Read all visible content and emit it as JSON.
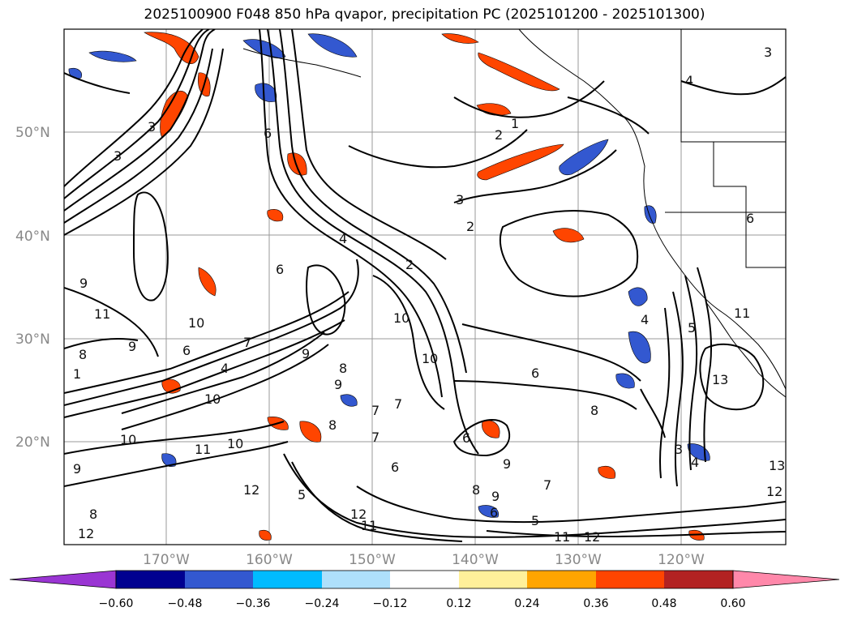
{
  "title": "2025100900 F048 850 hPa qvapor, precipitation PC (2025101200 - 2025101300)",
  "lat_labels": [
    "20°N",
    "30°N",
    "40°N",
    "50°N"
  ],
  "lon_labels": [
    "170°W",
    "160°W",
    "150°W",
    "140°W",
    "130°W",
    "120°W"
  ],
  "colorbar": {
    "ticks": [
      "−0.60",
      "−0.48",
      "−0.36",
      "−0.24",
      "−0.12",
      "0.12",
      "0.24",
      "0.36",
      "0.48",
      "0.60"
    ],
    "colors": [
      "#9a35d3",
      "#000090",
      "#3358d0",
      "#00bbff",
      "#aee0fb",
      "#ffffff",
      "#fff09a",
      "#ffa500",
      "#ff4500",
      "#b22222",
      "#ff88aa"
    ]
  },
  "contour_labels": [
    "3",
    "3",
    "3",
    "6",
    "1",
    "2",
    "3",
    "2",
    "4",
    "2",
    "4",
    "6",
    "9",
    "10",
    "11",
    "10",
    "9",
    "8",
    "6",
    "4",
    "1",
    "10",
    "10",
    "9",
    "8",
    "7",
    "6",
    "8",
    "7",
    "6",
    "9",
    "8",
    "9",
    "7",
    "6",
    "5",
    "11",
    "12",
    "12",
    "13",
    "13",
    "12",
    "11",
    "10",
    "9",
    "8",
    "7",
    "6",
    "5",
    "4",
    "3",
    "4",
    "5",
    "6",
    "7",
    "8",
    "9",
    "10",
    "11",
    "12",
    "12",
    "11"
  ],
  "map_colors": {
    "land": "#ffffff",
    "coast": "#000000",
    "contours": "#000000",
    "grid": "#999999"
  }
}
